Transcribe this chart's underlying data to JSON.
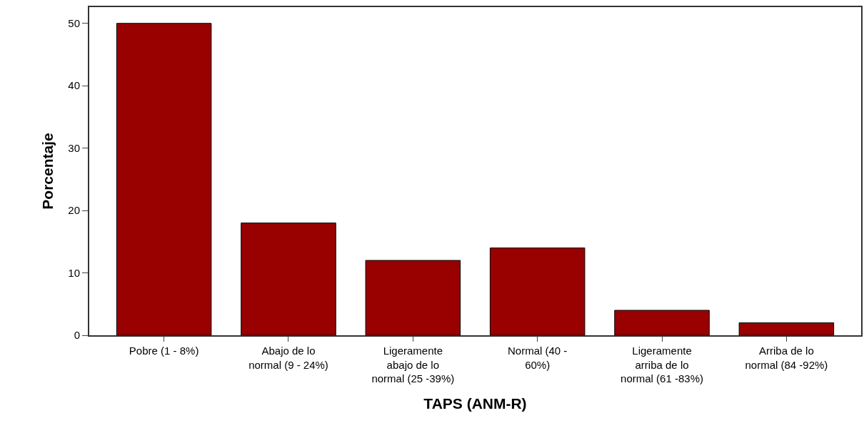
{
  "chart_data": {
    "type": "bar",
    "xlabel": "TAPS (ANM-R)",
    "ylabel": "Porcentaje",
    "categories": [
      "Pobre (1 - 8%)",
      "Abajo de lo normal (9 - 24%)",
      "Ligeramente abajo de lo normal (25 -39%)",
      "Normal (40 - 60%)",
      "Ligeramente arriba de lo normal (61 -83%)",
      "Arriba de lo normal (84 -92%)"
    ],
    "values": [
      50,
      18,
      12,
      14,
      4,
      2
    ],
    "color": "#990000",
    "ylim": [
      0,
      52.6
    ],
    "yticks": [
      0,
      10,
      20,
      30,
      40,
      50
    ]
  }
}
